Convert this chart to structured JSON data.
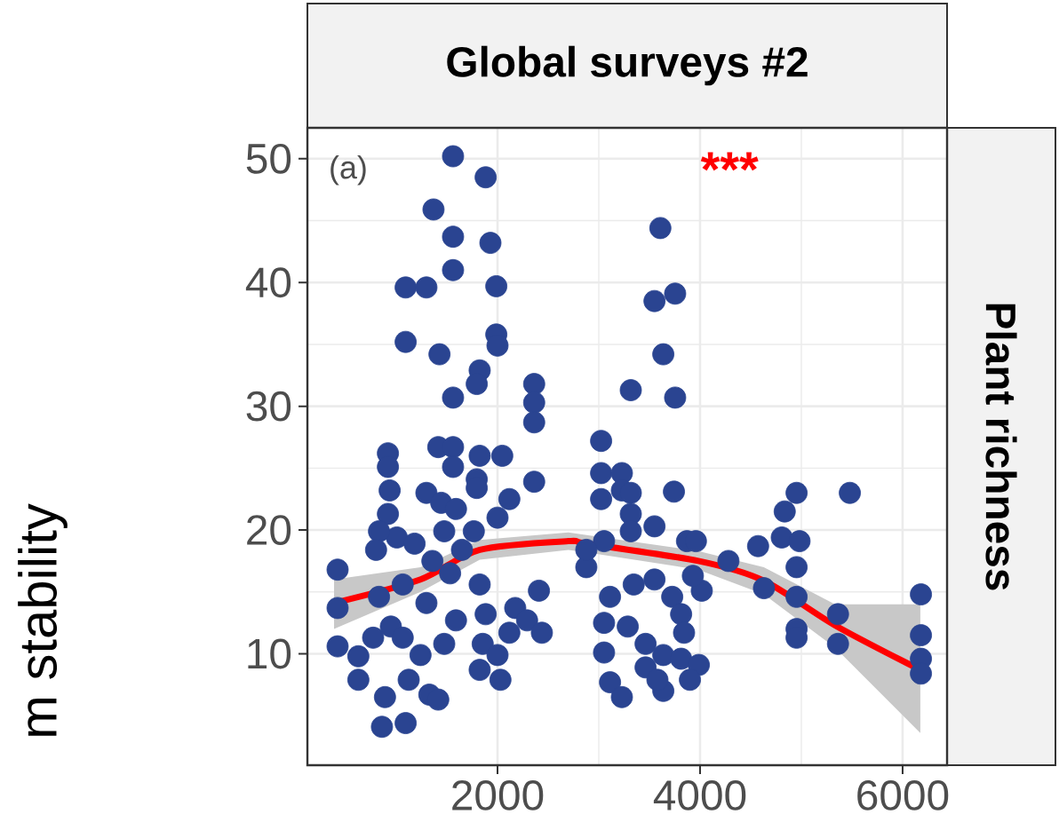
{
  "chart_data": {
    "type": "scatter",
    "title": "Global surveys #2",
    "ylabel": "m stability",
    "y2label": "Plant richness",
    "annotations": [
      "(a)",
      "***"
    ],
    "xlim": [
      123,
      6439
    ],
    "ylim": [
      1.0,
      52.5
    ],
    "xticks": [
      2000,
      4000,
      6000
    ],
    "yticks": [
      10,
      20,
      30,
      40,
      50
    ],
    "grid": true,
    "series": [
      {
        "marker": "circle",
        "color": "#2a4491",
        "x": [
          1561,
          1883,
          1368,
          1561,
          1930,
          1561,
          1093,
          1298,
          1988,
          1988,
          2000,
          1093,
          1427,
          1824,
          1795,
          1561,
          2362,
          2362,
          2362,
          3316,
          918,
          918,
          935,
          1415,
          1561,
          1561,
          1824,
          2047,
          1795,
          1795,
          2362,
          2117,
          2000,
          3023,
          3023,
          3228,
          3023,
          3228,
          1298,
          1444,
          1590,
          918,
          1006,
          830,
          801,
          421,
          1766,
          2877,
          3052,
          421,
          421,
          626,
          626,
          889,
          859,
          1093,
          1327,
          1415,
          1123,
          1240,
          1474,
          947,
          830,
          1064,
          1298,
          1532,
          1649,
          1824,
          1883,
          1854,
          1824,
          2029,
          2000,
          2117,
          2175,
          2292,
          2409,
          2438,
          1474,
          1181,
          1357,
          772,
          1064,
          1590,
          3111,
          3228,
          3052,
          3052,
          3111,
          3286,
          3345,
          2877,
          3316,
          3316,
          3316,
          3608,
          3550,
          3754,
          3637,
          3754,
          3742,
          3550,
          3871,
          3959,
          3550,
          3725,
          3813,
          3842,
          3462,
          3637,
          3813,
          3988,
          3900,
          3637,
          3462,
          3579,
          4017,
          3929,
          4280,
          4573,
          4631,
          4807,
          4982,
          4836,
          4953,
          4953,
          4953,
          4953,
          4953,
          5362,
          5362,
          5479,
          6181,
          6181,
          6181,
          6181
        ],
        "values": [
          50.2,
          48.5,
          45.9,
          43.7,
          43.2,
          41.0,
          39.6,
          39.6,
          39.7,
          35.8,
          34.9,
          35.2,
          34.2,
          32.9,
          31.8,
          30.7,
          31.8,
          30.3,
          28.7,
          31.3,
          26.2,
          25.1,
          23.2,
          26.7,
          26.7,
          25.1,
          26.0,
          26.0,
          24.1,
          23.4,
          23.9,
          22.5,
          21.0,
          27.2,
          24.6,
          24.6,
          22.5,
          23.2,
          23.0,
          22.2,
          21.7,
          21.3,
          19.4,
          19.9,
          18.4,
          16.8,
          19.9,
          17.0,
          19.1,
          13.7,
          10.6,
          9.8,
          7.9,
          6.5,
          4.1,
          4.4,
          6.7,
          6.3,
          7.9,
          9.9,
          10.8,
          12.2,
          14.6,
          15.6,
          14.1,
          16.5,
          18.4,
          15.6,
          13.2,
          10.8,
          8.7,
          7.9,
          9.9,
          11.7,
          13.7,
          12.7,
          15.1,
          11.7,
          19.9,
          18.9,
          17.5,
          11.3,
          11.3,
          12.7,
          7.7,
          6.5,
          10.1,
          12.5,
          14.6,
          12.2,
          15.6,
          18.4,
          23.0,
          21.3,
          19.9,
          44.4,
          38.5,
          39.1,
          34.2,
          30.7,
          23.1,
          20.3,
          19.1,
          19.1,
          16.0,
          14.6,
          13.2,
          11.7,
          10.8,
          9.9,
          9.6,
          9.1,
          7.9,
          7.0,
          8.9,
          7.9,
          15.1,
          16.3,
          17.5,
          18.7,
          15.3,
          19.4,
          19.1,
          21.5,
          23.0,
          17.0,
          14.6,
          12.0,
          11.3,
          13.2,
          10.8,
          23.0,
          14.8,
          11.5,
          9.6,
          8.4
        ]
      },
      {
        "type": "line",
        "marker": "none",
        "color": "#ff0000",
        "x": [
          386,
          1240,
          1825,
          2700,
          2880,
          3982,
          4630,
          5333,
          6175
        ],
        "values": [
          14.1,
          16.0,
          18.4,
          19.1,
          18.9,
          17.5,
          15.9,
          12.3,
          8.7
        ],
        "lower": [
          12.0,
          15.0,
          17.6,
          18.4,
          18.2,
          16.8,
          14.8,
          10.5,
          3.6
        ],
        "upper": [
          16.0,
          17.0,
          19.2,
          19.8,
          19.6,
          18.3,
          17.0,
          14.0,
          14.0
        ]
      }
    ]
  }
}
